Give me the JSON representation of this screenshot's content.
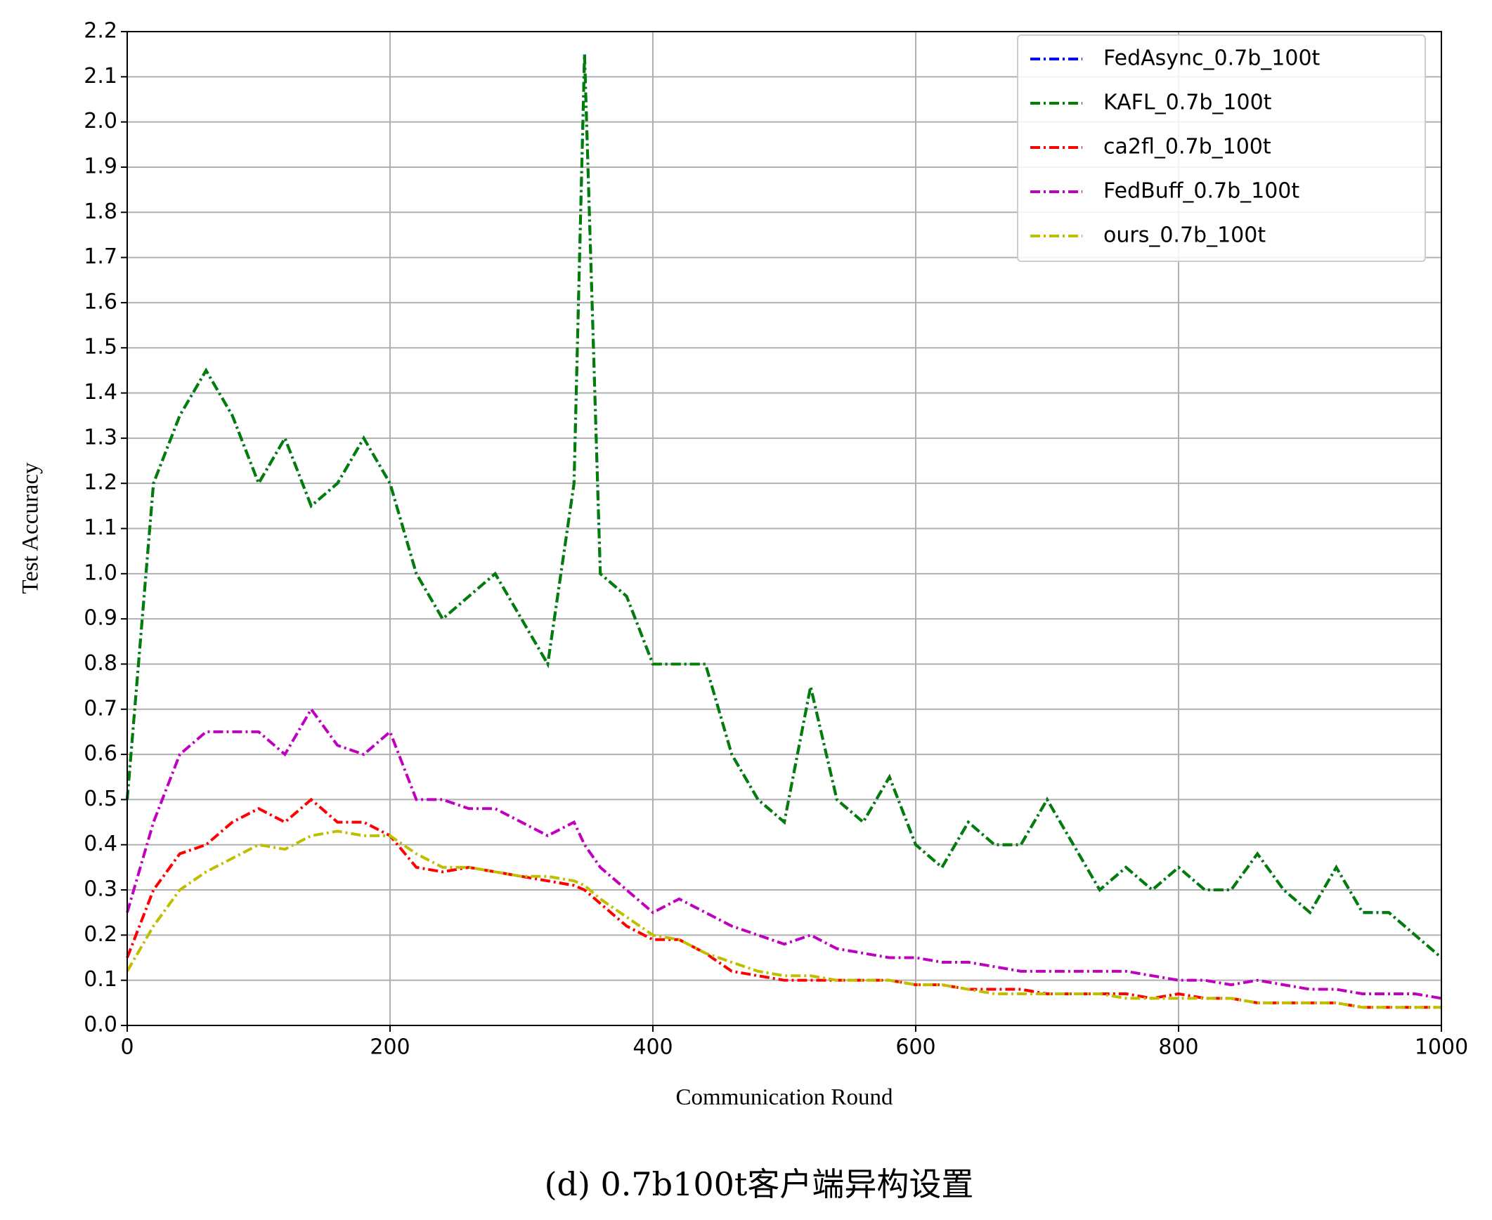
{
  "chart_data": {
    "type": "line",
    "xlabel": "Communication Round",
    "ylabel": "Test Accuracy",
    "caption": "(d) 0.7b100t客户端异构设置",
    "x": [
      0,
      20,
      40,
      60,
      80,
      100,
      120,
      140,
      160,
      180,
      200,
      220,
      240,
      260,
      280,
      300,
      320,
      340,
      348,
      360,
      380,
      400,
      420,
      440,
      460,
      480,
      500,
      520,
      540,
      560,
      580,
      600,
      620,
      640,
      660,
      680,
      700,
      720,
      740,
      760,
      780,
      800,
      820,
      840,
      860,
      880,
      900,
      920,
      940,
      960,
      980,
      1000
    ],
    "series": [
      {
        "name": "FedAsync_0.7b_100t",
        "color": "#0000ff",
        "values": [
          0.5,
          1.2,
          1.35,
          1.45,
          1.35,
          1.2,
          1.3,
          1.15,
          1.2,
          1.3,
          1.2,
          1.0,
          0.9,
          0.95,
          1.0,
          0.9,
          0.8,
          1.2,
          2.15,
          1.0,
          0.95,
          0.8,
          0.8,
          0.8,
          0.6,
          0.5,
          0.45,
          0.75,
          0.5,
          0.45,
          0.55,
          0.4,
          0.35,
          0.45,
          0.4,
          0.4,
          0.5,
          0.4,
          0.3,
          0.35,
          0.3,
          0.35,
          0.3,
          0.3,
          0.38,
          0.3,
          0.25,
          0.35,
          0.25,
          0.25,
          0.2,
          0.15
        ]
      },
      {
        "name": "KAFL_0.7b_100t",
        "color": "#008000",
        "values": [
          0.5,
          1.2,
          1.35,
          1.45,
          1.35,
          1.2,
          1.3,
          1.15,
          1.2,
          1.3,
          1.2,
          1.0,
          0.9,
          0.95,
          1.0,
          0.9,
          0.8,
          1.2,
          2.15,
          1.0,
          0.95,
          0.8,
          0.8,
          0.8,
          0.6,
          0.5,
          0.45,
          0.75,
          0.5,
          0.45,
          0.55,
          0.4,
          0.35,
          0.45,
          0.4,
          0.4,
          0.5,
          0.4,
          0.3,
          0.35,
          0.3,
          0.35,
          0.3,
          0.3,
          0.38,
          0.3,
          0.25,
          0.35,
          0.25,
          0.25,
          0.2,
          0.15
        ]
      },
      {
        "name": "ca2fl_0.7b_100t",
        "color": "#ff0000",
        "values": [
          0.15,
          0.3,
          0.38,
          0.4,
          0.45,
          0.48,
          0.45,
          0.5,
          0.45,
          0.45,
          0.42,
          0.35,
          0.34,
          0.35,
          0.34,
          0.33,
          0.32,
          0.31,
          0.3,
          0.27,
          0.22,
          0.19,
          0.19,
          0.16,
          0.12,
          0.11,
          0.1,
          0.1,
          0.1,
          0.1,
          0.1,
          0.09,
          0.09,
          0.08,
          0.08,
          0.08,
          0.07,
          0.07,
          0.07,
          0.07,
          0.06,
          0.07,
          0.06,
          0.06,
          0.05,
          0.05,
          0.05,
          0.05,
          0.04,
          0.04,
          0.04,
          0.04
        ]
      },
      {
        "name": "FedBuff_0.7b_100t",
        "color": "#bf00bf",
        "values": [
          0.25,
          0.45,
          0.6,
          0.65,
          0.65,
          0.65,
          0.6,
          0.7,
          0.62,
          0.6,
          0.65,
          0.5,
          0.5,
          0.48,
          0.48,
          0.45,
          0.42,
          0.45,
          0.4,
          0.35,
          0.3,
          0.25,
          0.28,
          0.25,
          0.22,
          0.2,
          0.18,
          0.2,
          0.17,
          0.16,
          0.15,
          0.15,
          0.14,
          0.14,
          0.13,
          0.12,
          0.12,
          0.12,
          0.12,
          0.12,
          0.11,
          0.1,
          0.1,
          0.09,
          0.1,
          0.09,
          0.08,
          0.08,
          0.07,
          0.07,
          0.07,
          0.06
        ]
      },
      {
        "name": "ours_0.7b_100t",
        "color": "#bfbf00",
        "values": [
          0.12,
          0.22,
          0.3,
          0.34,
          0.37,
          0.4,
          0.39,
          0.42,
          0.43,
          0.42,
          0.42,
          0.38,
          0.35,
          0.35,
          0.34,
          0.33,
          0.33,
          0.32,
          0.31,
          0.28,
          0.24,
          0.2,
          0.19,
          0.16,
          0.14,
          0.12,
          0.11,
          0.11,
          0.1,
          0.1,
          0.1,
          0.09,
          0.09,
          0.08,
          0.07,
          0.07,
          0.07,
          0.07,
          0.07,
          0.06,
          0.06,
          0.06,
          0.06,
          0.06,
          0.05,
          0.05,
          0.05,
          0.05,
          0.04,
          0.04,
          0.04,
          0.04
        ]
      }
    ],
    "xlim": [
      0,
      1000
    ],
    "xticks": [
      0,
      200,
      400,
      600,
      800,
      1000
    ],
    "ylim": [
      0,
      2.2
    ],
    "yticks": [
      {
        "value": 0,
        "label": "0.0"
      },
      0.1,
      0.2,
      0.3,
      0.4,
      0.5,
      0.6,
      0.7,
      0.8,
      0.9,
      {
        "value": 1,
        "label": "1.0"
      },
      1.1,
      1.2,
      1.3,
      1.4,
      1.5,
      1.6,
      1.7,
      1.8,
      1.9,
      {
        "value": 2,
        "label": "2.0"
      },
      2.1,
      2.2
    ],
    "grid": true,
    "legend": "upper right"
  }
}
